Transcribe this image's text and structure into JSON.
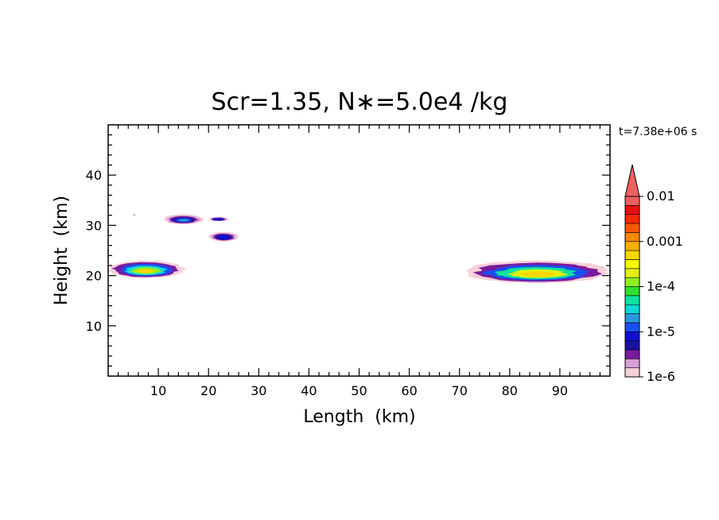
{
  "chart_data": {
    "type": "heatmap",
    "title": "Scr=1.35, N∗=5.0e4 /kg",
    "time_label": "t=7.38e+06 s",
    "xlabel": "Length  (km)",
    "ylabel": "Height  (km)",
    "xlim": [
      0,
      100
    ],
    "ylim": [
      0,
      50
    ],
    "x_ticks": [
      10,
      20,
      30,
      40,
      50,
      60,
      70,
      80,
      90
    ],
    "y_ticks": [
      10,
      20,
      30,
      40
    ],
    "colorbar": {
      "scale": "log",
      "range": [
        1e-06,
        0.01
      ],
      "extend": "max",
      "tick_labels": [
        "1e-6",
        "1e-5",
        "1e-4",
        "0.001",
        "0.01"
      ],
      "colors": [
        "#f8d0d8",
        "#d8a0d8",
        "#7a1aa0",
        "#1a10a0",
        "#1010d0",
        "#1850f0",
        "#2898e0",
        "#10d8d8",
        "#10e0a0",
        "#30e030",
        "#90f020",
        "#e0f010",
        "#f8f800",
        "#f8d800",
        "#f8b000",
        "#f88800",
        "#f85800",
        "#f82800",
        "#e81010",
        "#f06060"
      ]
    },
    "regions": [
      {
        "name": "left-band",
        "x_range": [
          0,
          15
        ],
        "y_range": [
          19.5,
          23
        ],
        "peak": 0.0005
      },
      {
        "name": "cloud-a",
        "x_range": [
          11,
          19
        ],
        "y_range": [
          30.2,
          32.2
        ],
        "peak": 2e-05
      },
      {
        "name": "cloud-b",
        "x_range": [
          20,
          24
        ],
        "y_range": [
          30.8,
          31.7
        ],
        "peak": 1e-05
      },
      {
        "name": "cloud-c",
        "x_range": [
          20,
          26
        ],
        "y_range": [
          26.8,
          28.7
        ],
        "peak": 1e-05
      },
      {
        "name": "cloud-d",
        "x_range": [
          4.8,
          5.6
        ],
        "y_range": [
          31.9,
          32.3
        ],
        "peak": 2e-06
      },
      {
        "name": "right-band",
        "x_range": [
          71,
          100
        ],
        "y_range": [
          18.5,
          23
        ],
        "peak": 0.0007
      }
    ]
  }
}
